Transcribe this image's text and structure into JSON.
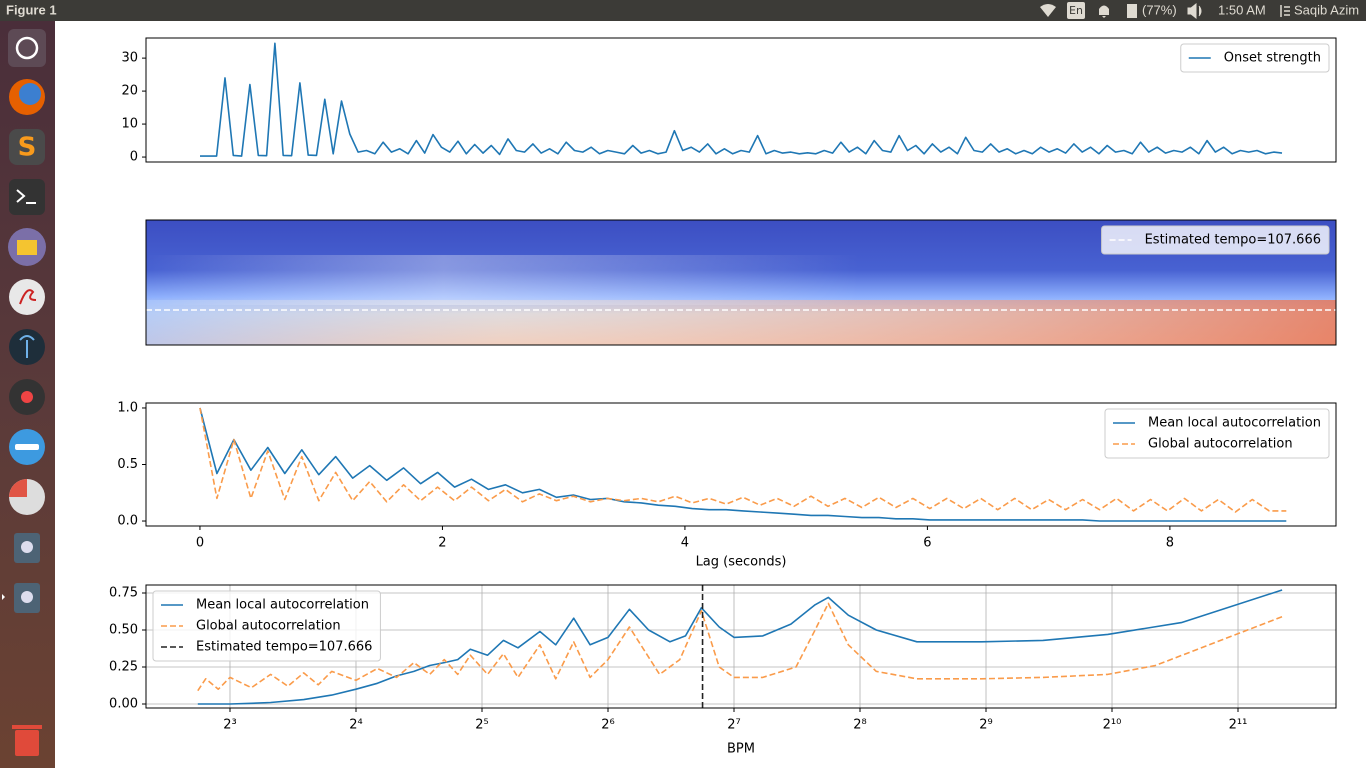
{
  "top_bar": {
    "window_title": "Figure 1",
    "keyboard": "En",
    "battery": "(77%)",
    "clock": "1:50 AM",
    "user": "Saqib Azim"
  },
  "chart_data": [
    {
      "type": "line",
      "legend": "upper right",
      "ylim": [
        -1.5,
        36.1
      ],
      "yticks": [
        0,
        10,
        20,
        30
      ],
      "series": [
        {
          "name": "Onset strength",
          "color": "#1f77b4",
          "style": "solid",
          "values": [
            0.3,
            0.3,
            0.3,
            24,
            0.5,
            0.3,
            22,
            0.5,
            0.4,
            34.5,
            0.5,
            0.4,
            22.5,
            0.6,
            0.5,
            17.5,
            1.0,
            17,
            7,
            1.5,
            2,
            1,
            4.5,
            1.5,
            2.5,
            1,
            5,
            1.2,
            6.8,
            3,
            1.5,
            4.8,
            1,
            3.8,
            1.2,
            3.5,
            0.8,
            5.5,
            2,
            1.5,
            4,
            1.2,
            2.5,
            1,
            4.5,
            2,
            1.5,
            3,
            1,
            2,
            1.5,
            1,
            3.5,
            1.2,
            2,
            1,
            1.5,
            8,
            2,
            3,
            1.5,
            4,
            1,
            2.5,
            1,
            2,
            1.5,
            6.5,
            1,
            2,
            1.2,
            1.5,
            1,
            1.3,
            1,
            2,
            1.2,
            4.5,
            1.5,
            3,
            1,
            5,
            2,
            1.5,
            6.5,
            2,
            3.5,
            1,
            4,
            1.5,
            3,
            1,
            6,
            2,
            1.5,
            4,
            1.5,
            2.5,
            1,
            2,
            1,
            3,
            1.5,
            2.5,
            1.2,
            4,
            1.5,
            3,
            1,
            3.5,
            1.5,
            2,
            1,
            4.5,
            1.5,
            3,
            1.2,
            2,
            1.5,
            3,
            1,
            5,
            1.5,
            3,
            1,
            2,
            1.5,
            2,
            1,
            1.5,
            1.2
          ]
        }
      ]
    },
    {
      "type": "heatmap",
      "colormap": "coolwarm",
      "legend": "upper right",
      "series": [
        {
          "name": "Estimated tempo=107.666",
          "color": "#ffffff",
          "style": "dashed"
        }
      ]
    },
    {
      "type": "line",
      "legend": "upper right",
      "xlabel": "Lag (seconds)",
      "xlim": [
        -0.445,
        9.37
      ],
      "xticks": [
        0,
        2,
        4,
        6,
        8
      ],
      "ylim": [
        -0.044,
        1.044
      ],
      "yticks": [
        {
          "value": 0,
          "label": "0.0"
        },
        {
          "value": 0.5,
          "label": "0.5"
        },
        {
          "value": 1,
          "label": "1.0"
        }
      ],
      "x": [
        0,
        0.14,
        0.28,
        0.42,
        0.56,
        0.7,
        0.84,
        0.98,
        1.12,
        1.26,
        1.4,
        1.54,
        1.68,
        1.82,
        1.96,
        2.1,
        2.24,
        2.38,
        2.52,
        2.66,
        2.8,
        2.94,
        3.08,
        3.22,
        3.36,
        3.5,
        3.64,
        3.78,
        3.92,
        4.06,
        4.2,
        4.34,
        4.48,
        4.62,
        4.76,
        4.9,
        5.04,
        5.18,
        5.32,
        5.46,
        5.6,
        5.74,
        5.88,
        6.02,
        6.16,
        6.3,
        6.44,
        6.58,
        6.72,
        6.86,
        7.0,
        7.14,
        7.28,
        7.42,
        7.56,
        7.7,
        7.84,
        7.98,
        8.12,
        8.26,
        8.4,
        8.54,
        8.68,
        8.82,
        8.96
      ],
      "series": [
        {
          "name": "Mean local autocorrelation",
          "color": "#1f77b4",
          "style": "solid",
          "values": [
            1.0,
            0.42,
            0.72,
            0.45,
            0.65,
            0.42,
            0.63,
            0.41,
            0.57,
            0.38,
            0.49,
            0.36,
            0.47,
            0.33,
            0.43,
            0.3,
            0.37,
            0.28,
            0.32,
            0.25,
            0.28,
            0.21,
            0.23,
            0.19,
            0.2,
            0.17,
            0.16,
            0.14,
            0.13,
            0.11,
            0.1,
            0.1,
            0.09,
            0.08,
            0.07,
            0.06,
            0.05,
            0.05,
            0.04,
            0.03,
            0.03,
            0.02,
            0.02,
            0.01,
            0.01,
            0.01,
            0.01,
            0.01,
            0.01,
            0.01,
            0.01,
            0.01,
            0.01,
            0,
            0,
            0,
            0,
            0,
            0,
            0,
            0,
            0,
            0,
            0,
            0
          ]
        },
        {
          "name": "Global autocorrelation",
          "color": "#fa9b4a",
          "style": "dashed",
          "values": [
            1.0,
            0.2,
            0.72,
            0.2,
            0.62,
            0.19,
            0.57,
            0.18,
            0.43,
            0.18,
            0.35,
            0.17,
            0.32,
            0.18,
            0.3,
            0.18,
            0.3,
            0.18,
            0.28,
            0.17,
            0.24,
            0.18,
            0.22,
            0.17,
            0.2,
            0.18,
            0.2,
            0.17,
            0.22,
            0.16,
            0.2,
            0.15,
            0.21,
            0.14,
            0.2,
            0.13,
            0.22,
            0.13,
            0.2,
            0.12,
            0.21,
            0.12,
            0.2,
            0.11,
            0.2,
            0.11,
            0.2,
            0.1,
            0.2,
            0.1,
            0.19,
            0.1,
            0.19,
            0.1,
            0.2,
            0.09,
            0.19,
            0.09,
            0.2,
            0.09,
            0.19,
            0.08,
            0.19,
            0.09,
            0.09
          ]
        }
      ]
    },
    {
      "type": "line",
      "legend": "upper left",
      "xlabel": "BPM",
      "xscale": "log",
      "grid": true,
      "xlim": [
        5.04,
        3511
      ],
      "xticks": [
        {
          "value": 8,
          "label": "2³"
        },
        {
          "value": 16,
          "label": "2⁴"
        },
        {
          "value": 32,
          "label": "2⁵"
        },
        {
          "value": 64,
          "label": "2⁶"
        },
        {
          "value": 128,
          "label": "2⁷"
        },
        {
          "value": 256,
          "label": "2⁸"
        },
        {
          "value": 512,
          "label": "2⁹"
        },
        {
          "value": 1024,
          "label": "2¹⁰"
        },
        {
          "value": 2048,
          "label": "2¹¹"
        }
      ],
      "ylim": [
        -0.027,
        0.804
      ],
      "yticks": [
        {
          "value": 0,
          "label": "0.00"
        },
        {
          "value": 0.25,
          "label": "0.25"
        },
        {
          "value": 0.5,
          "label": "0.50"
        },
        {
          "value": 0.75,
          "label": "0.75"
        }
      ],
      "series": [
        {
          "name": "Mean local autocorrelation",
          "color": "#1f77b4",
          "style": "solid",
          "x": [
            6.7,
            8,
            9,
            10,
            12,
            14,
            16,
            18,
            20,
            22,
            24,
            26,
            28,
            30,
            33,
            36,
            39,
            44,
            48,
            53,
            58,
            64,
            72,
            80,
            90,
            98,
            107,
            118,
            128,
            150,
            175,
            200,
            215,
            240,
            280,
            350,
            500,
            700,
            1000,
            1500,
            2610
          ],
          "values": [
            0,
            0,
            0.005,
            0.01,
            0.03,
            0.06,
            0.1,
            0.14,
            0.19,
            0.22,
            0.26,
            0.28,
            0.3,
            0.37,
            0.33,
            0.43,
            0.38,
            0.49,
            0.4,
            0.58,
            0.4,
            0.45,
            0.64,
            0.5,
            0.42,
            0.46,
            0.65,
            0.52,
            0.45,
            0.46,
            0.54,
            0.67,
            0.72,
            0.6,
            0.5,
            0.42,
            0.42,
            0.43,
            0.47,
            0.55,
            0.77
          ]
        },
        {
          "name": "Global autocorrelation",
          "color": "#fa9b4a",
          "style": "dashed",
          "x": [
            6.7,
            7,
            7.5,
            8,
            9,
            10,
            11,
            12,
            13,
            14,
            16,
            18,
            20,
            22,
            24,
            26,
            28,
            30,
            33,
            36,
            39,
            44,
            48,
            53,
            58,
            64,
            72,
            85,
            95,
            107,
            118,
            128,
            150,
            180,
            200,
            215,
            240,
            280,
            350,
            500,
            700,
            1000,
            1300,
            2610
          ],
          "values": [
            0.09,
            0.17,
            0.1,
            0.18,
            0.11,
            0.2,
            0.12,
            0.21,
            0.13,
            0.22,
            0.16,
            0.24,
            0.18,
            0.28,
            0.2,
            0.3,
            0.2,
            0.33,
            0.2,
            0.34,
            0.18,
            0.4,
            0.17,
            0.42,
            0.18,
            0.3,
            0.52,
            0.2,
            0.3,
            0.63,
            0.25,
            0.18,
            0.18,
            0.25,
            0.5,
            0.68,
            0.4,
            0.22,
            0.17,
            0.17,
            0.18,
            0.2,
            0.26,
            0.59
          ]
        },
        {
          "name": "Estimated tempo=107.666",
          "color": "#222222",
          "style": "dashed",
          "kind": "vline",
          "x": 107.666
        }
      ]
    }
  ]
}
